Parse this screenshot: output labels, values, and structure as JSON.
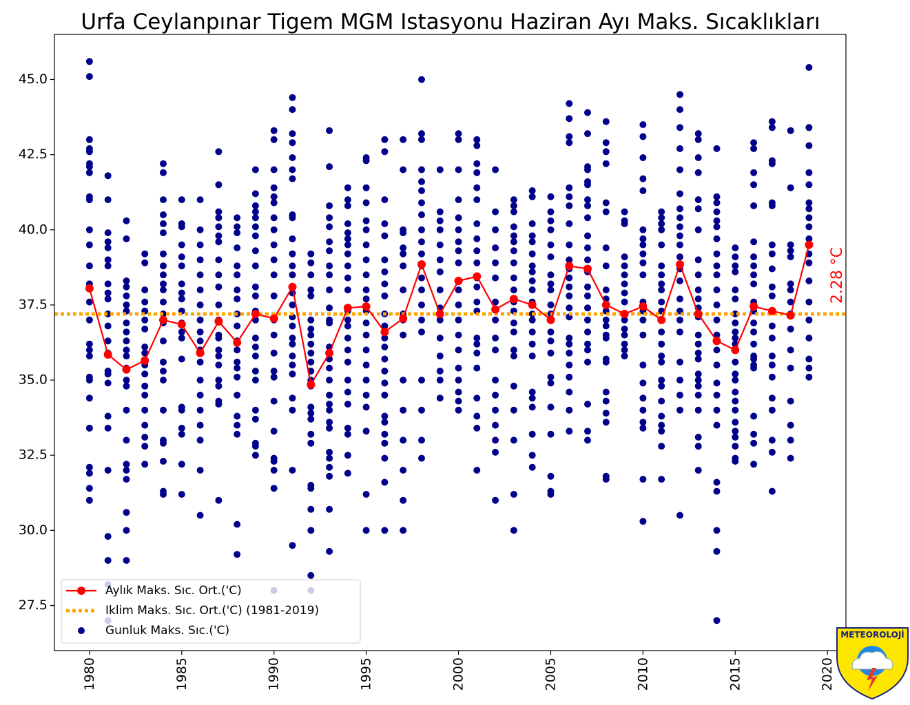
{
  "chart_data": {
    "type": "scatter",
    "title": "Urfa Ceylanpınar Tigem MGM Istasyonu Haziran Ayı Maks. Sıcaklıkları",
    "xlabel": "",
    "ylabel": "",
    "xlim": [
      1978.1,
      2021.0
    ],
    "ylim": [
      26.0,
      46.5
    ],
    "x_ticks": [
      "1980",
      "1985",
      "1990",
      "1995",
      "2000",
      "2005",
      "2010",
      "2015",
      "2020"
    ],
    "y_ticks": [
      "27.5",
      "30.0",
      "32.5",
      "35.0",
      "37.5",
      "40.0",
      "42.5",
      "45.0"
    ],
    "grid": false,
    "legend_position": "lower-left",
    "annotation": {
      "text": "2.28 °C",
      "color": "#ff0000"
    },
    "logo_text": "METEOROLOJİ",
    "colors": {
      "monthly": "#ff0000",
      "climate": "#ffa500",
      "daily": "#00008b"
    },
    "series": [
      {
        "name": "Aylık Maks. Sıc. Ort.('C)",
        "type": "line",
        "x": [
          1980,
          1981,
          1982,
          1983,
          1984,
          1985,
          1986,
          1987,
          1988,
          1989,
          1990,
          1991,
          1992,
          1993,
          1994,
          1995,
          1996,
          1997,
          1998,
          1999,
          2000,
          2001,
          2002,
          2003,
          2004,
          2005,
          2006,
          2007,
          2008,
          2009,
          2010,
          2011,
          2012,
          2013,
          2014,
          2015,
          2016,
          2017,
          2018,
          2019
        ],
        "y": [
          38.05,
          35.85,
          35.35,
          35.65,
          37.0,
          36.85,
          35.9,
          36.95,
          36.25,
          37.2,
          37.05,
          38.1,
          34.85,
          35.9,
          37.4,
          37.45,
          36.6,
          37.05,
          38.85,
          37.2,
          38.3,
          38.45,
          37.35,
          37.7,
          37.5,
          37.0,
          38.8,
          38.7,
          37.5,
          37.2,
          37.45,
          37.0,
          38.85,
          37.2,
          36.3,
          36.0,
          37.45,
          37.3,
          37.15,
          39.5
        ]
      },
      {
        "name": "Iklim Maks. Sıc. Ort.('C) (1981-2019)",
        "type": "hline",
        "y": 37.2
      },
      {
        "name": "Gunluk Maks. Sıc.('C)",
        "type": "scatter",
        "points": {
          "1980": [
            45.6,
            45.1,
            43.0,
            42.7,
            42.6,
            42.2,
            42.1,
            41.9,
            41.1,
            41.0,
            40.0,
            39.5,
            38.8,
            38.2,
            37.6,
            37.0,
            36.2,
            36.0,
            35.8,
            35.1,
            35.0,
            34.4,
            33.4,
            32.1,
            31.9,
            31.4,
            31.0
          ],
          "1981": [
            41.8,
            41.0,
            39.9,
            39.6,
            39.4,
            39.0,
            38.8,
            38.2,
            37.9,
            37.7,
            37.2,
            36.8,
            36.3,
            35.9,
            35.3,
            35.2,
            34.9,
            33.8,
            33.4,
            32.0,
            29.8,
            29.0,
            28.2,
            27.0
          ],
          "1982": [
            40.3,
            39.7,
            38.3,
            38.1,
            37.8,
            37.5,
            37.3,
            36.9,
            36.6,
            36.3,
            36.0,
            35.8,
            35.4,
            35.0,
            34.8,
            34.0,
            33.0,
            32.2,
            32.0,
            31.7,
            30.6,
            30.0,
            29.0
          ],
          "1983": [
            39.2,
            38.9,
            38.0,
            37.6,
            37.3,
            37.0,
            36.7,
            36.1,
            35.9,
            35.5,
            35.2,
            34.8,
            34.5,
            34.0,
            33.5,
            33.1,
            32.8,
            32.2
          ],
          "1984": [
            42.2,
            41.9,
            41.0,
            40.5,
            40.2,
            39.9,
            39.2,
            38.8,
            38.5,
            38.2,
            38.0,
            37.6,
            37.2,
            36.9,
            36.3,
            35.6,
            35.3,
            35.0,
            34.0,
            33.0,
            32.9,
            32.3,
            31.3,
            31.2
          ],
          "1985": [
            41.0,
            40.2,
            40.1,
            39.5,
            39.1,
            38.8,
            38.2,
            37.9,
            37.7,
            37.3,
            36.9,
            36.6,
            36.4,
            35.7,
            34.1,
            34.0,
            33.4,
            33.2,
            32.2,
            31.2
          ],
          "1986": [
            41.0,
            40.0,
            39.5,
            39.0,
            38.5,
            38.0,
            37.5,
            37.0,
            36.6,
            36.3,
            36.0,
            35.6,
            35.0,
            34.5,
            34.0,
            33.5,
            33.0,
            32.0,
            30.5
          ],
          "1987": [
            42.6,
            41.5,
            40.6,
            40.4,
            40.1,
            39.8,
            39.6,
            39.0,
            38.5,
            38.1,
            37.5,
            37.0,
            36.5,
            36.4,
            36.0,
            35.8,
            35.5,
            35.0,
            34.8,
            34.3,
            34.2,
            31.0
          ],
          "1988": [
            40.4,
            40.1,
            39.9,
            39.4,
            38.8,
            38.5,
            38.0,
            37.7,
            37.2,
            36.8,
            36.3,
            36.0,
            35.6,
            35.4,
            35.1,
            34.5,
            33.8,
            33.5,
            33.2,
            30.2,
            29.2
          ],
          "1989": [
            42.0,
            41.2,
            40.8,
            40.6,
            40.4,
            40.1,
            39.8,
            39.3,
            38.8,
            38.1,
            37.8,
            37.3,
            37.0,
            36.4,
            36.1,
            35.8,
            35.3,
            35.0,
            34.0,
            33.7,
            32.9,
            32.8,
            32.5
          ],
          "1990": [
            43.3,
            43.0,
            42.0,
            41.4,
            41.1,
            40.9,
            40.4,
            40.0,
            39.5,
            39.0,
            38.5,
            37.8,
            37.0,
            36.5,
            35.9,
            35.3,
            35.1,
            34.3,
            33.3,
            32.4,
            32.3,
            32.0,
            31.4,
            28.0
          ],
          "1991": [
            44.4,
            44.0,
            43.2,
            42.9,
            42.4,
            42.0,
            41.7,
            40.5,
            40.4,
            39.7,
            39.2,
            38.8,
            38.5,
            37.9,
            37.5,
            37.1,
            36.8,
            36.4,
            36.2,
            35.8,
            35.5,
            35.2,
            34.4,
            34.0,
            32.0,
            29.5
          ],
          "1992": [
            39.2,
            38.9,
            38.5,
            38.0,
            37.8,
            37.0,
            36.7,
            36.5,
            36.2,
            35.9,
            35.6,
            35.3,
            35.0,
            34.8,
            34.1,
            33.9,
            33.7,
            33.2,
            32.9,
            31.5,
            31.4,
            30.7,
            30.0,
            28.5,
            28.0
          ],
          "1993": [
            43.3,
            42.1,
            40.8,
            40.4,
            40.1,
            39.6,
            39.3,
            38.8,
            38.5,
            38.0,
            37.4,
            37.0,
            36.9,
            36.1,
            35.7,
            35.4,
            35.0,
            34.5,
            34.2,
            34.0,
            33.6,
            33.4,
            32.6,
            32.4,
            32.1,
            31.8,
            30.7,
            29.3
          ],
          "1994": [
            41.4,
            41.0,
            40.8,
            40.2,
            39.9,
            39.7,
            39.5,
            39.2,
            38.8,
            38.4,
            38.0,
            37.3,
            37.0,
            36.8,
            36.4,
            36.0,
            35.6,
            35.0,
            34.6,
            34.2,
            33.4,
            33.2,
            32.5,
            31.9
          ],
          "1995": [
            42.4,
            42.3,
            41.4,
            40.9,
            40.3,
            40.0,
            39.5,
            39.0,
            38.5,
            38.0,
            37.7,
            37.3,
            36.9,
            36.5,
            36.0,
            35.5,
            35.0,
            34.5,
            34.1,
            33.3,
            31.2,
            30.0
          ],
          "1996": [
            43.0,
            42.6,
            41.0,
            40.2,
            39.8,
            39.0,
            38.6,
            38.2,
            37.8,
            37.2,
            36.8,
            36.4,
            36.1,
            35.7,
            35.3,
            34.9,
            34.5,
            33.8,
            33.6,
            33.2,
            32.9,
            32.4,
            31.6,
            30.0
          ],
          "1997": [
            43.0,
            42.0,
            40.0,
            39.9,
            39.4,
            39.2,
            38.8,
            38.0,
            37.2,
            37.0,
            36.5,
            35.0,
            34.0,
            33.0,
            32.0,
            31.0,
            30.0
          ],
          "1998": [
            45.0,
            43.2,
            43.0,
            42.0,
            41.6,
            41.3,
            40.9,
            40.5,
            40.0,
            39.6,
            39.2,
            38.8,
            38.4,
            38.0,
            37.5,
            37.0,
            36.6,
            35.0,
            34.0,
            33.0,
            32.4
          ],
          "1999": [
            42.0,
            40.6,
            40.3,
            40.0,
            39.5,
            39.0,
            38.6,
            38.0,
            37.4,
            37.0,
            36.4,
            35.8,
            35.3,
            35.0,
            34.4
          ],
          "2000": [
            43.2,
            43.0,
            42.0,
            41.0,
            40.4,
            40.0,
            39.6,
            39.3,
            38.9,
            38.3,
            38.0,
            37.5,
            37.0,
            36.5,
            36.0,
            35.4,
            35.0,
            34.6,
            34.3,
            34.0
          ],
          "2001": [
            43.0,
            42.8,
            42.2,
            41.9,
            41.4,
            41.0,
            40.2,
            39.7,
            39.3,
            38.9,
            38.4,
            38.1,
            37.6,
            37.3,
            36.4,
            36.2,
            35.9,
            35.4,
            34.4,
            33.8,
            33.4,
            32.0
          ],
          "2002": [
            42.0,
            40.6,
            40.0,
            39.4,
            38.9,
            38.4,
            37.6,
            37.0,
            36.4,
            36.0,
            35.0,
            34.5,
            34.0,
            33.5,
            33.0,
            32.6,
            31.0
          ],
          "2003": [
            41.0,
            40.8,
            40.6,
            40.1,
            39.8,
            39.6,
            39.3,
            38.9,
            38.4,
            38.0,
            37.6,
            37.3,
            36.9,
            36.6,
            36.0,
            35.8,
            34.8,
            34.0,
            33.0,
            31.2,
            30.0
          ],
          "2004": [
            41.3,
            41.1,
            40.2,
            39.8,
            39.6,
            39.2,
            38.8,
            38.6,
            38.3,
            38.0,
            37.6,
            37.2,
            37.0,
            36.6,
            36.2,
            35.8,
            34.6,
            34.4,
            34.1,
            33.2,
            32.5,
            32.1
          ],
          "2005": [
            41.1,
            40.6,
            40.3,
            40.0,
            39.5,
            39.1,
            38.5,
            38.2,
            38.0,
            37.5,
            37.2,
            37.0,
            36.6,
            36.3,
            35.9,
            35.1,
            34.9,
            34.1,
            33.2,
            31.8,
            31.3,
            31.2
          ],
          "2006": [
            44.2,
            43.7,
            43.1,
            42.9,
            41.4,
            41.1,
            40.8,
            40.2,
            39.5,
            39.0,
            38.7,
            38.4,
            38.1,
            37.8,
            37.4,
            37.1,
            36.4,
            36.2,
            35.9,
            35.5,
            35.1,
            34.6,
            34.0,
            33.3
          ],
          "2007": [
            43.9,
            43.2,
            42.1,
            42.0,
            41.6,
            41.5,
            41.0,
            40.8,
            40.4,
            39.8,
            39.4,
            39.0,
            38.6,
            38.1,
            37.8,
            37.4,
            37.0,
            36.6,
            36.2,
            36.0,
            35.6,
            34.2,
            33.3,
            33.0
          ],
          "2008": [
            43.6,
            42.9,
            42.6,
            42.2,
            40.9,
            40.6,
            39.4,
            38.8,
            38.0,
            37.7,
            37.3,
            37.0,
            36.8,
            36.5,
            36.4,
            35.7,
            35.6,
            34.6,
            34.3,
            33.9,
            33.6,
            31.8,
            31.7
          ],
          "2009": [
            40.6,
            40.3,
            40.2,
            39.1,
            38.8,
            38.5,
            38.2,
            37.9,
            37.6,
            37.2,
            37.0,
            36.7,
            36.5,
            36.2,
            36.0,
            35.8
          ],
          "2010": [
            43.5,
            43.1,
            42.4,
            41.7,
            41.3,
            40.0,
            39.7,
            39.5,
            39.2,
            38.9,
            38.5,
            37.6,
            37.3,
            37.0,
            36.5,
            35.5,
            34.9,
            34.4,
            34.0,
            33.6,
            33.4,
            31.7,
            30.3
          ],
          "2011": [
            40.6,
            40.4,
            40.2,
            40.0,
            39.5,
            38.8,
            38.5,
            38.2,
            38.0,
            37.6,
            37.3,
            37.0,
            36.6,
            36.2,
            35.8,
            35.6,
            35.0,
            34.8,
            34.3,
            33.8,
            33.5,
            33.3,
            32.8,
            31.7
          ],
          "2012": [
            44.5,
            44.0,
            43.4,
            42.7,
            42.0,
            41.2,
            40.7,
            40.4,
            40.1,
            39.8,
            39.5,
            39.1,
            38.7,
            38.3,
            37.7,
            37.3,
            37.0,
            36.6,
            35.6,
            35.0,
            34.5,
            34.0,
            30.5
          ],
          "2013": [
            43.2,
            43.0,
            42.4,
            41.9,
            41.0,
            40.7,
            40.0,
            39.0,
            38.5,
            38.0,
            37.7,
            37.4,
            37.1,
            36.5,
            36.2,
            35.9,
            35.7,
            35.2,
            35.0,
            34.8,
            34.5,
            34.0,
            33.1,
            32.8,
            32.0
          ],
          "2014": [
            42.7,
            41.1,
            40.9,
            40.6,
            40.3,
            40.1,
            39.7,
            39.2,
            38.8,
            38.5,
            38.0,
            37.5,
            37.0,
            36.5,
            36.0,
            35.5,
            34.9,
            34.5,
            34.0,
            33.5,
            31.6,
            31.3,
            30.0,
            29.3,
            27.0
          ],
          "2015": [
            39.4,
            39.1,
            38.8,
            38.6,
            38.0,
            37.7,
            37.2,
            36.9,
            36.6,
            36.4,
            36.2,
            35.6,
            35.2,
            35.0,
            34.6,
            34.3,
            34.0,
            33.6,
            33.3,
            33.1,
            32.8,
            32.4,
            32.3
          ],
          "2016": [
            42.9,
            42.7,
            41.9,
            41.5,
            40.8,
            39.6,
            39.1,
            38.8,
            38.5,
            38.2,
            37.6,
            37.3,
            36.9,
            36.6,
            36.2,
            35.8,
            35.7,
            35.5,
            35.4,
            33.8,
            33.2,
            32.9,
            32.2
          ],
          "2017": [
            43.6,
            43.4,
            42.3,
            42.2,
            40.9,
            40.8,
            39.5,
            39.2,
            38.7,
            38.1,
            37.8,
            37.3,
            36.8,
            36.4,
            35.8,
            35.5,
            35.1,
            34.4,
            34.0,
            33.0,
            32.6,
            31.3
          ],
          "2018": [
            43.3,
            41.4,
            39.5,
            39.3,
            39.1,
            38.2,
            38.0,
            37.6,
            37.2,
            36.7,
            36.0,
            35.4,
            34.3,
            33.5,
            33.0,
            32.4
          ],
          "2019": [
            45.4,
            43.4,
            42.8,
            41.9,
            41.5,
            40.9,
            40.7,
            40.4,
            40.1,
            39.7,
            39.2,
            38.9,
            38.3,
            37.6,
            37.0,
            36.4,
            35.7,
            35.4,
            35.1
          ]
        }
      }
    ]
  }
}
